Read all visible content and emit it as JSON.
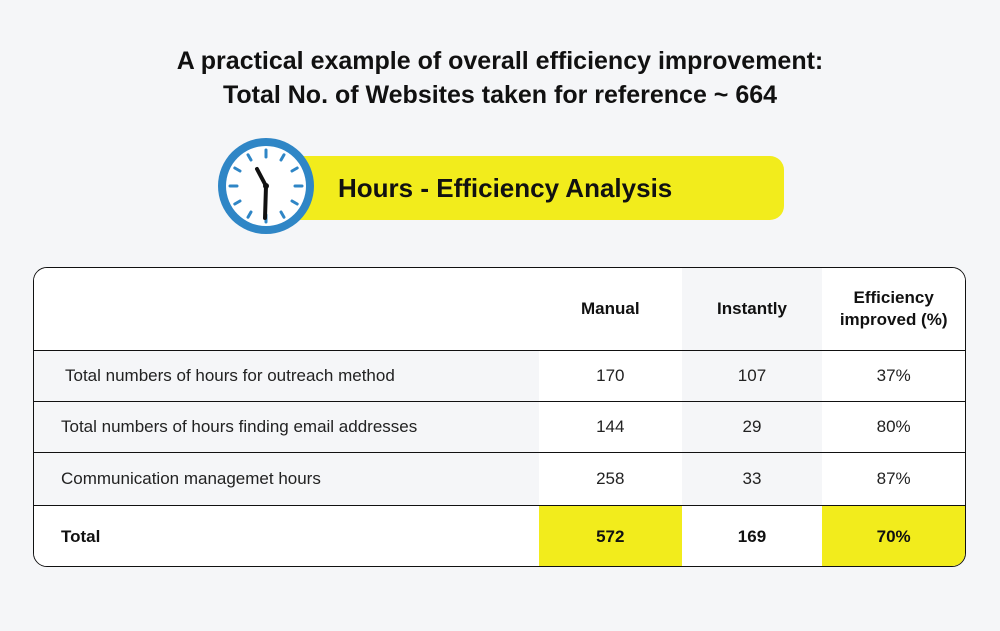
{
  "title": {
    "line1": "A practical example of overall efficiency improvement:",
    "line2": "Total No. of Websites taken for reference ~ 664"
  },
  "banner": {
    "label": "Hours - Efficiency Analysis",
    "icon": "clock-icon",
    "accent": "#f2ec1c"
  },
  "table": {
    "headers": [
      "",
      "Manual",
      "Instantly",
      "Efficiency improved (%)"
    ],
    "header_efficiency_line1": "Efficiency",
    "header_efficiency_line2": "improved (%)",
    "rows": [
      {
        "label": "Total numbers of hours for outreach method",
        "manual": "170",
        "instantly": "107",
        "efficiency": "37%"
      },
      {
        "label": "Total numbers of hours finding email addresses",
        "manual": "144",
        "instantly": "29",
        "efficiency": "80%"
      },
      {
        "label": "Communication managemet hours",
        "manual": "258",
        "instantly": "33",
        "efficiency": "87%"
      }
    ],
    "total": {
      "label": "Total",
      "manual": "572",
      "instantly": "169",
      "efficiency": "70%"
    }
  }
}
